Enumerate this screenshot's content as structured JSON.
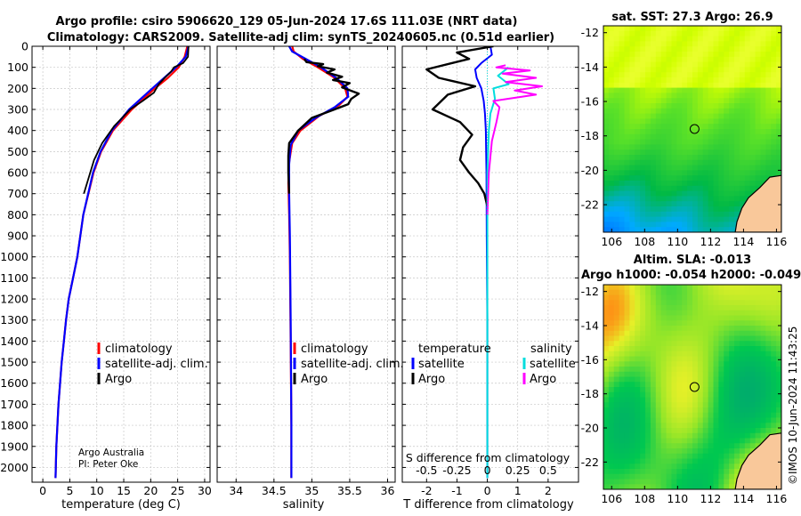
{
  "title": {
    "line1": "Argo profile: csiro 5906620_129 05-Jun-2024 17.6S 111.03E (NRT data)",
    "line2": "Climatology: CARS2009. Satellite-adj clim: synTS_20240605.nc (0.51d earlier)"
  },
  "credits": {
    "org": "Argo Australia",
    "pi": "PI: Peter Oke",
    "stamp": "©IMOS 10-Jun-2024 11:43:25"
  },
  "colors": {
    "climatology": "#ff0000",
    "satellite": "#0000ff",
    "argo": "#000000",
    "temp_sat": "#00dddd",
    "sal_argo": "#ff00ff",
    "land": "#f9c89a"
  },
  "chart_data": [
    {
      "id": "temperature",
      "type": "line",
      "xlabel": "temperature (deg C)",
      "xlim": [
        -2,
        31
      ],
      "ylim": [
        2070,
        0
      ],
      "xticks": [
        0,
        5,
        10,
        15,
        20,
        25,
        30
      ],
      "yticks": [
        0,
        100,
        200,
        300,
        400,
        500,
        600,
        700,
        800,
        900,
        1000,
        1100,
        1200,
        1300,
        1400,
        1500,
        1600,
        1700,
        1800,
        1900,
        2000
      ],
      "legend": [
        "climatology",
        "satellite-adj. clim.",
        "Argo"
      ],
      "series": [
        {
          "name": "climatology",
          "color": "#ff0000",
          "width": 2.2,
          "x": [
            26.8,
            26.3,
            25.2,
            23.2,
            20.8,
            16.5,
            13.0,
            10.8,
            9.4,
            7.5,
            6.4,
            5.6,
            4.8,
            4.3,
            3.9,
            3.5,
            3.2,
            2.9,
            2.7,
            2.5,
            2.4,
            2.35
          ],
          "depth": [
            0,
            50,
            100,
            150,
            200,
            300,
            400,
            500,
            600,
            800,
            1000,
            1100,
            1200,
            1300,
            1400,
            1500,
            1600,
            1700,
            1800,
            1900,
            2000,
            2050
          ]
        },
        {
          "name": "satellite-adj. clim.",
          "color": "#0000ff",
          "width": 2.2,
          "x": [
            27.0,
            26.5,
            24.7,
            22.5,
            20.3,
            16.0,
            12.8,
            10.7,
            9.3,
            7.5,
            6.4,
            5.6,
            4.8,
            4.3,
            3.9,
            3.5,
            3.2,
            2.9,
            2.7,
            2.5,
            2.4,
            2.35
          ],
          "depth": [
            0,
            50,
            100,
            150,
            200,
            300,
            400,
            500,
            600,
            800,
            1000,
            1100,
            1200,
            1300,
            1400,
            1500,
            1600,
            1700,
            1800,
            1900,
            2000,
            2050
          ]
        },
        {
          "name": "Argo",
          "color": "#000000",
          "width": 1.8,
          "x": [
            27.0,
            26.9,
            26.0,
            24.3,
            23.8,
            22.6,
            21.5,
            20.6,
            18.5,
            16.2,
            13.2,
            11.0,
            9.5,
            7.6
          ],
          "depth": [
            0,
            50,
            80,
            100,
            120,
            150,
            180,
            220,
            260,
            300,
            380,
            460,
            540,
            700
          ]
        }
      ]
    },
    {
      "id": "salinity",
      "type": "line",
      "xlabel": "salinity",
      "xlim": [
        33.75,
        36.1
      ],
      "ylim": [
        2070,
        0
      ],
      "xticks": [
        34,
        34.5,
        35,
        35.5,
        36
      ],
      "legend": [
        "climatology",
        "satellite-adj. clim.",
        "Argo"
      ],
      "series": [
        {
          "name": "climatology",
          "color": "#ff0000",
          "width": 2.2,
          "x": [
            34.74,
            34.76,
            34.88,
            35.08,
            35.3,
            35.44,
            35.47,
            35.36,
            35.1,
            34.85,
            34.74,
            34.7,
            34.69,
            34.7,
            34.71,
            34.72,
            34.73,
            34.73
          ],
          "depth": [
            0,
            25,
            60,
            100,
            150,
            200,
            240,
            280,
            330,
            400,
            460,
            550,
            650,
            800,
            1000,
            1400,
            1800,
            2050
          ]
        },
        {
          "name": "satellite-adj. clim.",
          "color": "#0000ff",
          "width": 2.2,
          "x": [
            34.7,
            34.74,
            34.92,
            35.12,
            35.32,
            35.47,
            35.48,
            35.3,
            35.05,
            34.82,
            34.72,
            34.7,
            34.7,
            34.71,
            34.72,
            34.73,
            34.73
          ],
          "depth": [
            0,
            25,
            60,
            100,
            150,
            200,
            240,
            290,
            340,
            400,
            470,
            560,
            700,
            900,
            1300,
            1800,
            2050
          ]
        },
        {
          "name": "Argo",
          "color": "#000000",
          "width": 2.4,
          "x": [
            34.9,
            34.93,
            35.15,
            35.08,
            35.3,
            35.2,
            35.4,
            35.28,
            35.5,
            35.4,
            35.62,
            35.52,
            35.48,
            35.3,
            35.0,
            34.82,
            34.7,
            34.69,
            34.69,
            34.7
          ],
          "depth": [
            60,
            75,
            85,
            95,
            110,
            125,
            145,
            160,
            175,
            195,
            225,
            250,
            275,
            300,
            340,
            400,
            460,
            520,
            600,
            700
          ]
        }
      ]
    },
    {
      "id": "difference",
      "type": "line",
      "xlabel": "T difference from climatology",
      "xlabel_top": "S difference from climatology",
      "xlim": [
        -2.8,
        3.0
      ],
      "ylim": [
        2070,
        0
      ],
      "xticks": [
        -2,
        -1,
        0,
        1,
        2
      ],
      "xticks_top": [
        "-0.5",
        "-0.25",
        "0",
        "0.25",
        "0.5"
      ],
      "xticks_top_pos": [
        -2,
        -1,
        0,
        1,
        2
      ],
      "legend_temperature": {
        "title": "temperature",
        "items": [
          "satellite",
          "Argo"
        ]
      },
      "legend_salinity": {
        "title": "salinity",
        "items": [
          "satellite",
          "Argo"
        ]
      },
      "series": [
        {
          "name": "temperature satellite",
          "color": "#0000ff",
          "width": 2,
          "x": [
            0.1,
            0.15,
            -0.2,
            -0.4,
            -0.35,
            -0.2,
            -0.12,
            -0.08,
            -0.05,
            -0.03,
            -0.02,
            0,
            0,
            0
          ],
          "depth": [
            0,
            40,
            80,
            110,
            150,
            200,
            260,
            320,
            400,
            600,
            900,
            1300,
            1700,
            2050
          ]
        },
        {
          "name": "temperature Argo",
          "color": "#000000",
          "width": 2.4,
          "x": [
            0.2,
            -1.0,
            -0.6,
            -2.0,
            -1.6,
            -0.4,
            -1.3,
            -1.8,
            -0.9,
            -0.5,
            -0.8,
            -0.9,
            -0.6,
            -0.3,
            -0.1,
            0
          ],
          "depth": [
            0,
            30,
            60,
            110,
            150,
            190,
            230,
            300,
            360,
            420,
            480,
            540,
            600,
            650,
            700,
            760
          ]
        },
        {
          "name": "salinity satellite",
          "color": "#00dddd",
          "width": 2,
          "x": [
            0.7,
            0.35,
            0.7,
            0.2,
            0.25,
            0.1,
            0.05,
            0,
            0,
            0,
            0
          ],
          "depth": [
            100,
            140,
            180,
            200,
            250,
            320,
            400,
            600,
            900,
            1400,
            2050
          ]
        },
        {
          "name": "salinity Argo",
          "color": "#ff00ff",
          "width": 2,
          "x": [
            0.6,
            0.3,
            1.4,
            0.5,
            1.6,
            0.6,
            1.8,
            0.9,
            1.6,
            0.2,
            0.4,
            0.3,
            0.15,
            0.05,
            0
          ],
          "depth": [
            90,
            100,
            115,
            130,
            150,
            170,
            190,
            210,
            230,
            260,
            290,
            360,
            450,
            600,
            800
          ]
        }
      ]
    },
    {
      "id": "sst_map",
      "type": "heatmap",
      "title": "sat. SST: 27.3  Argo: 26.9",
      "xlim": [
        105.5,
        116.3
      ],
      "ylim": [
        -23.6,
        -11.6
      ],
      "xticks": [
        106,
        108,
        110,
        112,
        114,
        116
      ],
      "yticks": [
        -12,
        -14,
        -16,
        -18,
        -20,
        -22
      ],
      "marker": [
        111.03,
        -17.6
      ]
    },
    {
      "id": "sla_map",
      "type": "heatmap",
      "title": "Altim. SLA: -0.013",
      "subtitle": "Argo h1000: -0.054  h2000: -0.049",
      "xlim": [
        105.5,
        116.3
      ],
      "ylim": [
        -23.6,
        -11.6
      ],
      "xticks": [
        106,
        108,
        110,
        112,
        114,
        116
      ],
      "yticks": [
        -12,
        -14,
        -16,
        -18,
        -20,
        -22
      ],
      "marker": [
        111.03,
        -17.6
      ]
    }
  ]
}
